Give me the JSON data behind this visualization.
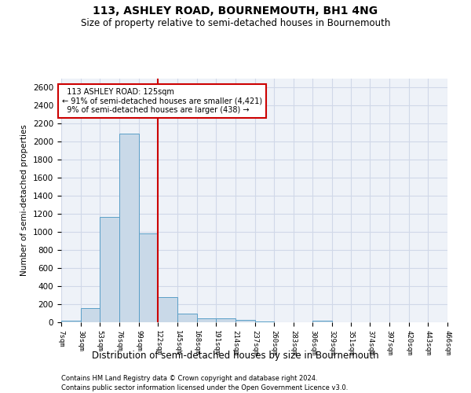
{
  "title": "113, ASHLEY ROAD, BOURNEMOUTH, BH1 4NG",
  "subtitle": "Size of property relative to semi-detached houses in Bournemouth",
  "xlabel": "Distribution of semi-detached houses by size in Bournemouth",
  "ylabel": "Number of semi-detached properties",
  "footnote1": "Contains HM Land Registry data © Crown copyright and database right 2024.",
  "footnote2": "Contains public sector information licensed under the Open Government Licence v3.0.",
  "property_label": "113 ASHLEY ROAD: 125sqm",
  "pct_smaller": 91,
  "n_smaller": 4421,
  "pct_larger": 9,
  "n_larger": 438,
  "bin_edges": [
    7,
    30,
    53,
    76,
    99,
    122,
    145,
    168,
    191,
    214,
    237,
    260,
    283,
    306,
    329,
    351,
    374,
    397,
    420,
    443,
    466
  ],
  "bar_heights": [
    20,
    160,
    1170,
    2090,
    980,
    280,
    100,
    45,
    40,
    30,
    5,
    0,
    0,
    20,
    0,
    0,
    0,
    0,
    0,
    0
  ],
  "bar_color": "#c9d9e8",
  "bar_edge_color": "#5a9fc7",
  "vline_color": "#cc0000",
  "vline_x": 122,
  "annotation_box_color": "#cc0000",
  "grid_color": "#d0d8e8",
  "background_color": "#eef2f8",
  "ylim": [
    0,
    2700
  ],
  "yticks": [
    0,
    200,
    400,
    600,
    800,
    1000,
    1200,
    1400,
    1600,
    1800,
    2000,
    2200,
    2400,
    2600
  ]
}
